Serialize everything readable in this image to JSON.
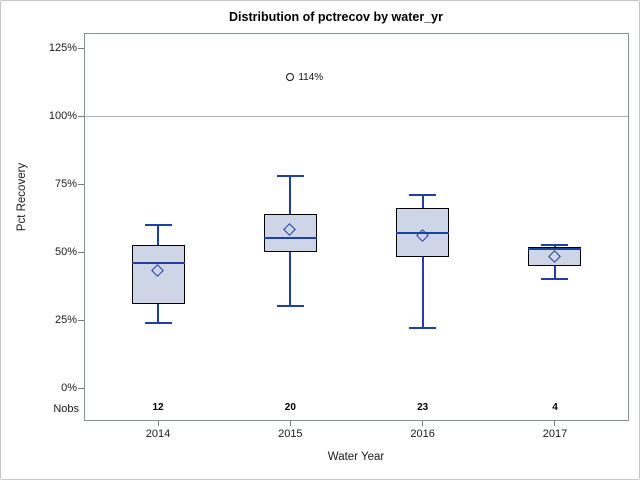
{
  "chart_data": {
    "type": "boxplot",
    "title": "Distribution of pctrecov by water_yr",
    "xlabel": "Water Year",
    "ylabel": "Pct Recovery",
    "y_axis": {
      "ticks": [
        {
          "label": "125%",
          "value": 125
        },
        {
          "label": "100%",
          "value": 100
        },
        {
          "label": "75%",
          "value": 75
        },
        {
          "label": "50%",
          "value": 50
        },
        {
          "label": "25%",
          "value": 25
        },
        {
          "label": "0%",
          "value": 0
        }
      ],
      "range": [
        0,
        125
      ],
      "reference_line": 100
    },
    "categories": [
      "2014",
      "2015",
      "2016",
      "2017"
    ],
    "nobs_label": "Nobs",
    "nobs": [
      "12",
      "20",
      "23",
      "4"
    ],
    "series": [
      {
        "category": "2014",
        "whisker_low": 24,
        "q1": 31,
        "median": 46,
        "q3": 52.5,
        "whisker_high": 60,
        "mean": 43,
        "outliers": []
      },
      {
        "category": "2015",
        "whisker_low": 30,
        "q1": 50,
        "median": 55,
        "q3": 64,
        "whisker_high": 78,
        "mean": 58,
        "outliers": [
          {
            "value": 114,
            "label": "114%"
          }
        ]
      },
      {
        "category": "2016",
        "whisker_low": 22,
        "q1": 48,
        "median": 57,
        "q3": 66,
        "whisker_high": 71,
        "mean": 56,
        "outliers": []
      },
      {
        "category": "2017",
        "whisker_low": 40,
        "q1": 45,
        "median": 51,
        "q3": 52,
        "whisker_high": 52.5,
        "mean": 48,
        "outliers": []
      }
    ],
    "mean_marker": "diamond",
    "outlier_marker": "circle",
    "legend": "none",
    "colors": {
      "box_fill": "#cdd5e6",
      "box_border": "#000000",
      "line": "#1e409e",
      "outlier": "#111111",
      "wall_border": "#878e94",
      "reference_line": "#aab0b5",
      "tick_mark": "#777d82",
      "text": "#1a1a1a"
    }
  }
}
